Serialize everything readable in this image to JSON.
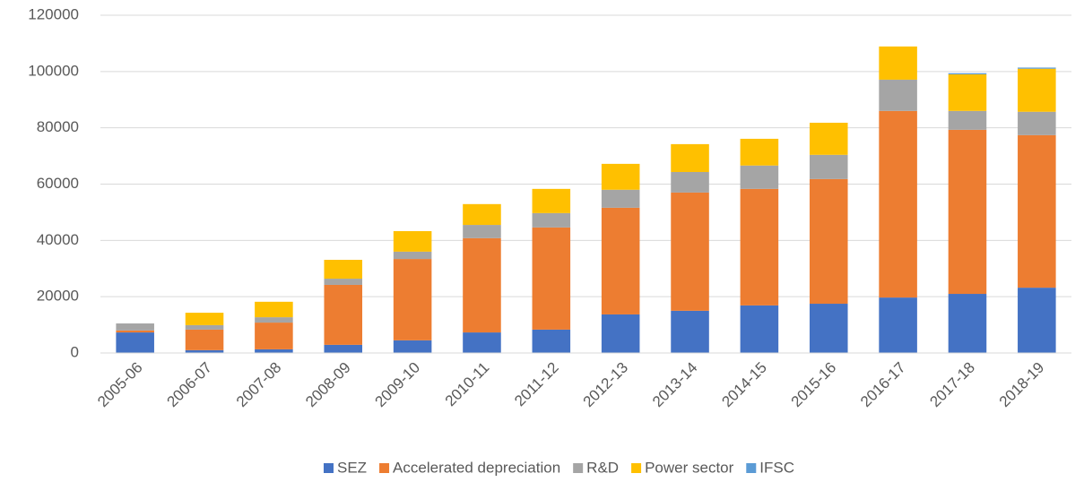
{
  "chart_data": {
    "type": "bar",
    "stacked": true,
    "categories": [
      "2005-06",
      "2006-07",
      "2007-08",
      "2008-09",
      "2009-10",
      "2010-11",
      "2011-12",
      "2012-13",
      "2013-14",
      "2014-15",
      "2015-16",
      "2016-17",
      "2017-18",
      "2018-19"
    ],
    "series": [
      {
        "name": "SEZ",
        "color": "#4472c4",
        "values": [
          7300,
          1000,
          1300,
          2900,
          4500,
          7300,
          8300,
          13700,
          15000,
          16900,
          17500,
          19700,
          21000,
          23200
        ]
      },
      {
        "name": "Accelerated depreciation",
        "color": "#ed7d31",
        "values": [
          700,
          7300,
          9500,
          21300,
          28900,
          33500,
          36300,
          37900,
          42000,
          41400,
          44300,
          66300,
          58300,
          54200
        ]
      },
      {
        "name": "R&D",
        "color": "#a5a5a5",
        "values": [
          2500,
          1600,
          1900,
          2200,
          2600,
          4700,
          5100,
          6400,
          7300,
          8300,
          8600,
          11100,
          6700,
          8300
        ]
      },
      {
        "name": "Power sector",
        "color": "#ffc000",
        "values": [
          0,
          4400,
          5500,
          6700,
          7300,
          7400,
          8600,
          9200,
          9900,
          9500,
          11400,
          11800,
          13000,
          15300
        ]
      },
      {
        "name": "IFSC",
        "color": "#5b9bd5",
        "values": [
          0,
          0,
          0,
          0,
          0,
          0,
          0,
          0,
          0,
          0,
          0,
          0,
          400,
          400
        ]
      }
    ],
    "ylim": [
      0,
      120000
    ],
    "yticks": [
      0,
      20000,
      40000,
      60000,
      80000,
      100000,
      120000
    ],
    "grid": true,
    "legend": "bottom"
  }
}
